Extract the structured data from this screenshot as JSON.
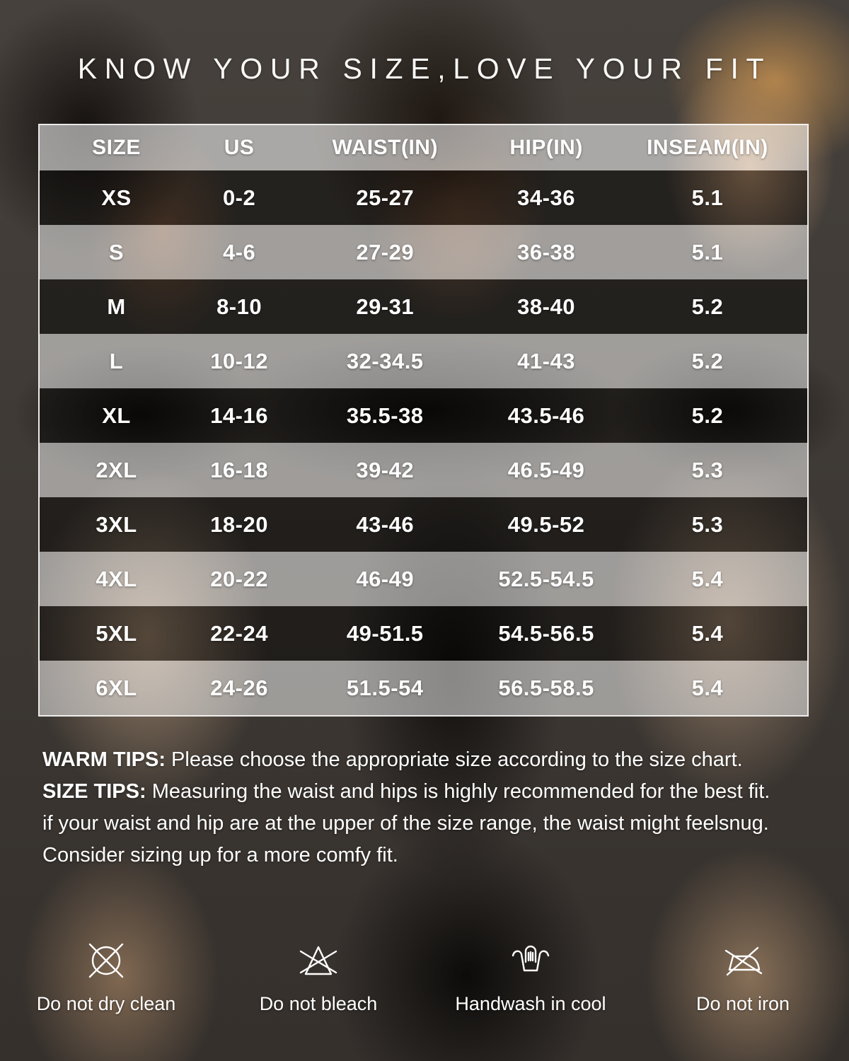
{
  "title": "KNOW YOUR SIZE,LOVE YOUR FIT",
  "table": {
    "headers": [
      "SIZE",
      "US",
      "WAIST(IN)",
      "HIP(IN)",
      "INSEAM(IN)"
    ],
    "rows": [
      {
        "size": "XS",
        "us": "0-2",
        "waist": "25-27",
        "hip": "34-36",
        "inseam": "5.1"
      },
      {
        "size": "S",
        "us": "4-6",
        "waist": "27-29",
        "hip": "36-38",
        "inseam": "5.1"
      },
      {
        "size": "M",
        "us": "8-10",
        "waist": "29-31",
        "hip": "38-40",
        "inseam": "5.2"
      },
      {
        "size": "L",
        "us": "10-12",
        "waist": "32-34.5",
        "hip": "41-43",
        "inseam": "5.2"
      },
      {
        "size": "XL",
        "us": "14-16",
        "waist": "35.5-38",
        "hip": "43.5-46",
        "inseam": "5.2"
      },
      {
        "size": "2XL",
        "us": "16-18",
        "waist": "39-42",
        "hip": "46.5-49",
        "inseam": "5.3"
      },
      {
        "size": "3XL",
        "us": "18-20",
        "waist": "43-46",
        "hip": "49.5-52",
        "inseam": "5.3"
      },
      {
        "size": "4XL",
        "us": "20-22",
        "waist": "46-49",
        "hip": "52.5-54.5",
        "inseam": "5.4"
      },
      {
        "size": "5XL",
        "us": "22-24",
        "waist": "49-51.5",
        "hip": "54.5-56.5",
        "inseam": "5.4"
      },
      {
        "size": "6XL",
        "us": "24-26",
        "waist": "51.5-54",
        "hip": "56.5-58.5",
        "inseam": "5.4"
      }
    ]
  },
  "tips": {
    "warm_label": "WARM TIPS:",
    "warm_text": " Please choose the appropriate size according to the size chart.",
    "size_label": "SIZE TIPS:",
    "size_text": " Measuring the waist and hips is highly recommended for the best fit.",
    "line3": "if your waist and hip are at the upper of the size range, the waist might feelsnug.",
    "line4": "Consider sizing up for a more comfy fit."
  },
  "care": {
    "items": [
      {
        "icon": "do-not-dry-clean-icon",
        "label": "Do not dry clean"
      },
      {
        "icon": "do-not-bleach-icon",
        "label": "Do not bleach"
      },
      {
        "icon": "handwash-icon",
        "label": "Handwash in cool"
      },
      {
        "icon": "do-not-iron-icon",
        "label": "Do not iron"
      }
    ]
  },
  "colors": {
    "text": "#ffffff",
    "table_border": "rgba(255,255,255,0.9)",
    "header_overlay": "rgba(255,255,255,0.55)",
    "row_light_overlay": "rgba(255,255,255,0.50)",
    "row_dark_overlay": "rgba(0,0,0,0.45)"
  }
}
